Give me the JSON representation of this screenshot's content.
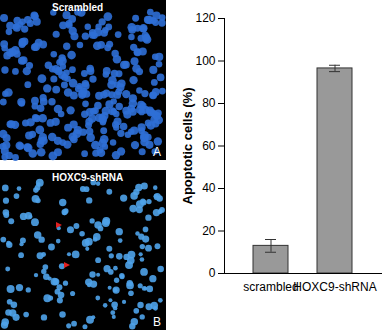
{
  "chart_data": {
    "type": "bar",
    "categories": [
      "scrambled",
      "HOXC9-shRNA"
    ],
    "values": [
      13,
      96.5
    ],
    "errors": [
      3,
      1.5
    ],
    "color": "#999999",
    "y_label": "Apoptotic cells (%)",
    "ylim": [
      0,
      120
    ],
    "yticks": [
      0,
      20,
      40,
      60,
      80,
      100,
      120
    ]
  },
  "panels": [
    {
      "title": "Scrambled",
      "label": "A"
    },
    {
      "title": "HOXC9-shRNA",
      "label": "B"
    }
  ]
}
